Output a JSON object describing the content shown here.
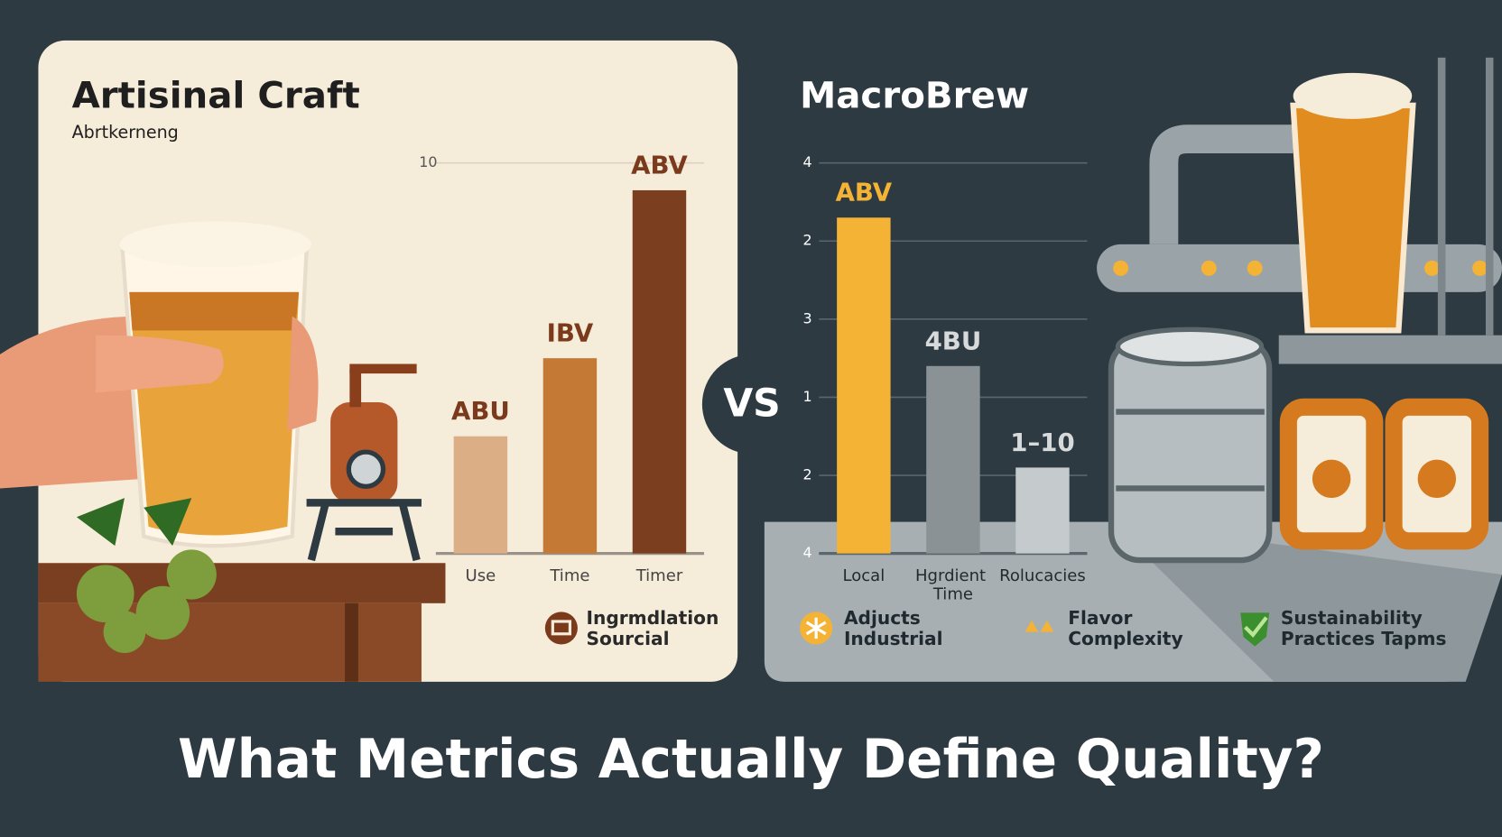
{
  "chart_data": [
    {
      "type": "bar",
      "title": "Artisinal Craft",
      "subtitle": "Abrtkerneng",
      "categories": [
        "Use",
        "Time",
        "Timer"
      ],
      "values": [
        3.0,
        5.0,
        9.3
      ],
      "bar_labels": [
        "ABU",
        "IBV",
        "ABV"
      ],
      "colors": [
        "#dcae86",
        "#c47a34",
        "#7b3f1f"
      ],
      "ylim": [
        0,
        10
      ],
      "yticks": [
        10
      ],
      "grid": true,
      "legend": [
        "Ingrmdlation Sourcial"
      ]
    },
    {
      "type": "bar",
      "title": "MacroBrew",
      "categories": [
        "Local",
        "Hgrdient Time",
        "Rolucacies"
      ],
      "values": [
        4.3,
        2.4,
        1.1
      ],
      "bar_labels": [
        "ABV",
        "4BU",
        "1–10"
      ],
      "colors": [
        "#f4b335",
        "#8a9296",
        "#c5cacc"
      ],
      "ylim": [
        0,
        5
      ],
      "yticks": [
        {
          "value": 5,
          "label": "4"
        },
        {
          "value": 4,
          "label": "2"
        },
        3,
        {
          "value": 2,
          "label": "1"
        },
        {
          "value": 1,
          "label": "2"
        },
        {
          "value": 0,
          "label": "4"
        }
      ],
      "grid": true,
      "legend": [
        "Adjucts Industrial",
        "Flavor Complexity",
        "Sustainability Practices Tapms"
      ]
    }
  ],
  "vs": "VS",
  "headline": "What Metrics Actually Define Quality?"
}
